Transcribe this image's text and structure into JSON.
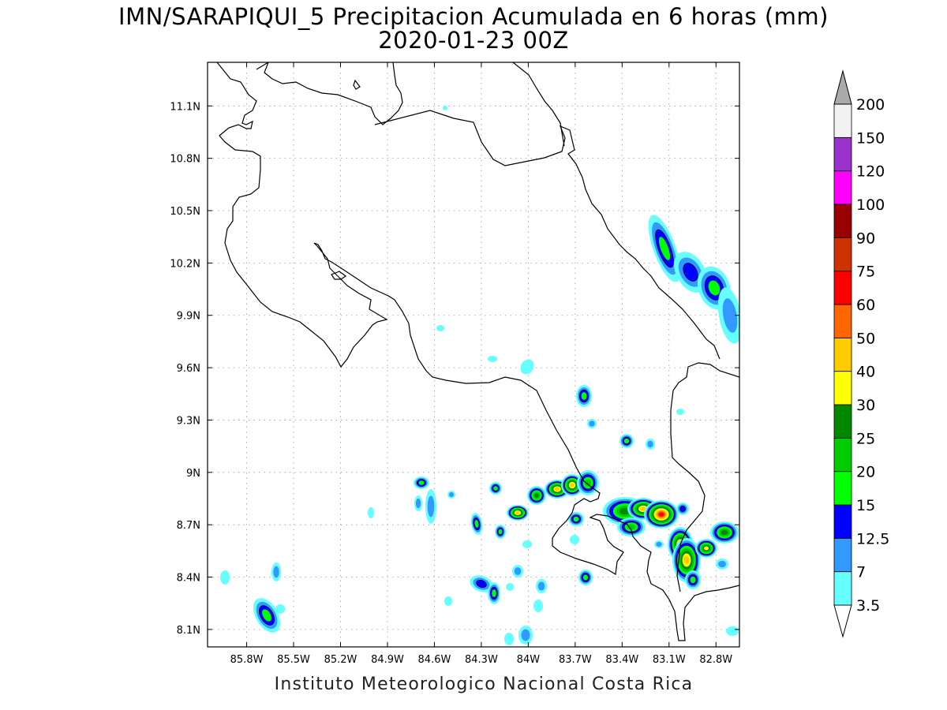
{
  "title": {
    "line1": "IMN/SARAPIQUI_5 Precipitacion Acumulada en 6 horas (mm)",
    "line2": "2020-01-23 00Z"
  },
  "footer": "Instituto Meteorologico Nacional Costa Rica",
  "map": {
    "lon_range": [
      -86.05,
      -82.65
    ],
    "lat_range": [
      8.0,
      11.35
    ],
    "lon_ticks": [
      -85.8,
      -85.5,
      -85.2,
      -84.9,
      -84.6,
      -84.3,
      -84.0,
      -83.7,
      -83.4,
      -83.1,
      -82.8
    ],
    "lon_labels": [
      "85.8W",
      "85.5W",
      "85.2W",
      "84.9W",
      "84.6W",
      "84.3W",
      "84W",
      "83.7W",
      "83.4W",
      "83.1W",
      "82.8W"
    ],
    "lat_ticks": [
      8.1,
      8.4,
      8.7,
      9.0,
      9.3,
      9.6,
      9.9,
      10.2,
      10.5,
      10.8,
      11.1
    ],
    "lat_labels": [
      "8.1N",
      "8.4N",
      "8.7N",
      "9N",
      "9.3N",
      "9.6N",
      "9.9N",
      "10.2N",
      "10.5N",
      "10.8N",
      "11.1N"
    ],
    "grid": "dotted"
  },
  "colorbar": {
    "labels": [
      "3.5",
      "7",
      "12.5",
      "15",
      "20",
      "25",
      "30",
      "40",
      "50",
      "60",
      "75",
      "90",
      "100",
      "120",
      "150",
      "200"
    ],
    "colors": [
      "#ffffff",
      "#66ffff",
      "#3399ff",
      "#0000ff",
      "#00ff00",
      "#00cc00",
      "#008800",
      "#ffff00",
      "#ffcc00",
      "#ff6600",
      "#ff0000",
      "#cc3300",
      "#990000",
      "#ff00ff",
      "#9933cc",
      "#f2f2f2",
      "#aaaaaa"
    ]
  },
  "palette": {
    "c1": "#66ffff",
    "c2": "#3399ff",
    "c3": "#0000ff",
    "c4": "#00ff00",
    "c5": "#00cc00",
    "c6": "#008800",
    "c7": "#ffff00",
    "c8": "#ffcc00",
    "c9": "#ff6600",
    "c10": "#ff0000"
  }
}
